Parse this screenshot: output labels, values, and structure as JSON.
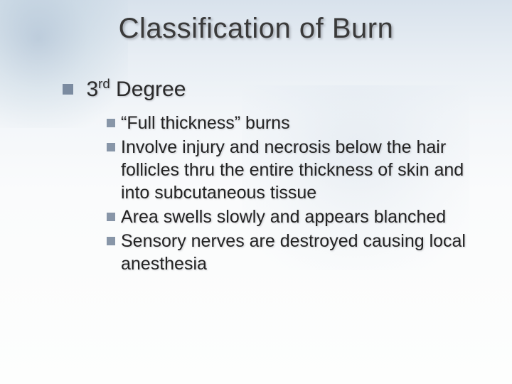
{
  "slide": {
    "title": "Classification of Burn",
    "background": {
      "gradient_top": "#d8e2ec",
      "gradient_bottom": "#fdfefd"
    },
    "level1": {
      "bullet_color": "#7b8ba0",
      "text_color": "#2a2a2a",
      "fontsize": 30,
      "label_prefix": "3",
      "label_super": "rd",
      "label_suffix": " Degree"
    },
    "level2": {
      "bullet_color": "#8896a8",
      "text_color": "#232323",
      "fontsize": 25,
      "items": [
        "“Full thickness” burns",
        "Involve injury and necrosis below the hair follicles thru the entire thickness of skin and into subcutaneous tissue",
        "Area swells slowly and appears blanched",
        "Sensory nerves are destroyed causing local anesthesia"
      ]
    },
    "title_style": {
      "fontsize": 40,
      "color": "#3a3a3a",
      "shadow": "2px 2px 3px rgba(80,80,90,0.4)"
    }
  }
}
